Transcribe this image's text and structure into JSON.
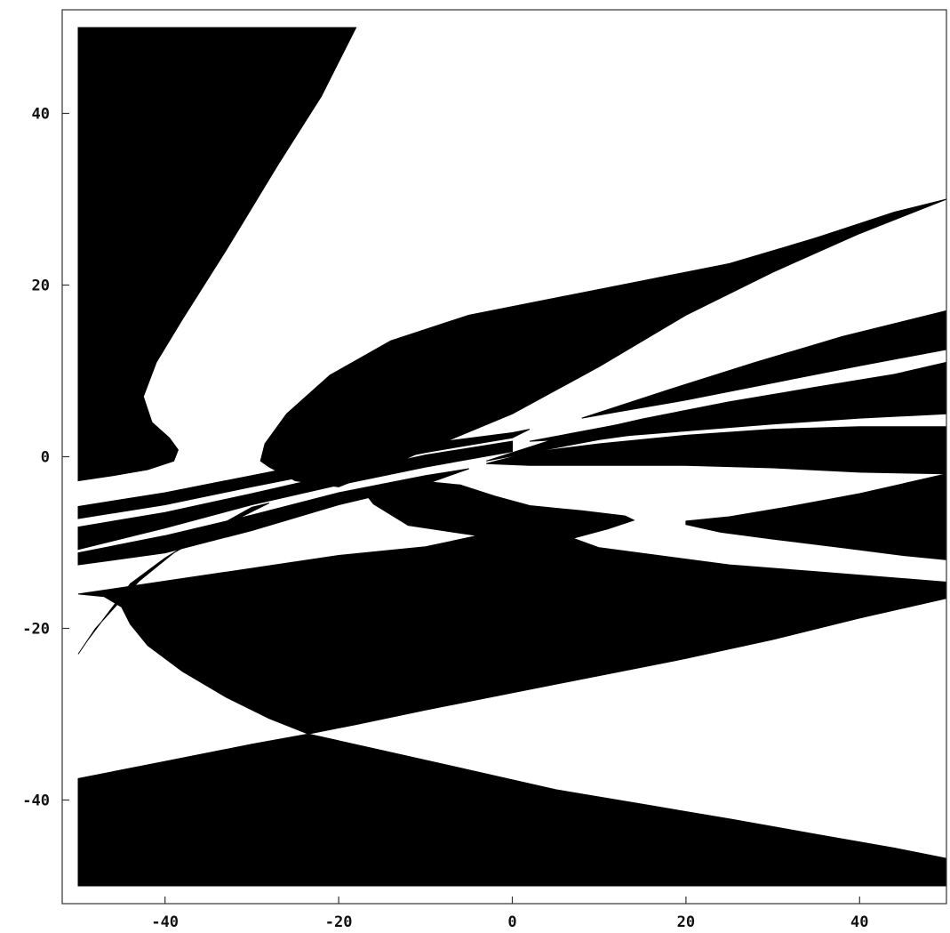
{
  "chart_data": {
    "type": "area",
    "title": "",
    "xlabel": "",
    "ylabel": "",
    "xlim": [
      -50,
      50
    ],
    "ylim": [
      -50,
      50
    ],
    "grid": false,
    "x_ticks": [
      -40,
      -20,
      0,
      20,
      40
    ],
    "x_tick_labels": [
      "-40",
      "-20",
      "0",
      "20",
      "40"
    ],
    "y_ticks": [
      40,
      20,
      0,
      -20,
      -40
    ],
    "y_tick_labels": [
      "40",
      "20",
      "0",
      "-20",
      "-40"
    ],
    "fill_color": "#000000",
    "background_color": "#ffffff",
    "regions": [
      {
        "name": "upper-left-region",
        "points": [
          [
            -50,
            50
          ],
          [
            -18,
            50
          ],
          [
            -22,
            42
          ],
          [
            -27,
            34
          ],
          [
            -33,
            24
          ],
          [
            -38,
            16
          ],
          [
            -41,
            11
          ],
          [
            -42.5,
            7
          ],
          [
            -41.5,
            4
          ],
          [
            -39.5,
            2.2
          ],
          [
            -38.5,
            0.8
          ],
          [
            -39,
            -0.5
          ],
          [
            -42,
            -1.5
          ],
          [
            -46,
            -2.2
          ],
          [
            -50,
            -2.8
          ]
        ]
      },
      {
        "name": "upper-wing-region",
        "points": [
          [
            50,
            30
          ],
          [
            44,
            28.5
          ],
          [
            35,
            25.5
          ],
          [
            25,
            22.5
          ],
          [
            15,
            20.5
          ],
          [
            5,
            18.5
          ],
          [
            -5,
            16.5
          ],
          [
            -14,
            13.5
          ],
          [
            -21,
            9.5
          ],
          [
            -26,
            5
          ],
          [
            -28.5,
            1.5
          ],
          [
            -29,
            -0.5
          ],
          [
            -28,
            -1.2
          ],
          [
            -25,
            -2.8
          ],
          [
            -20,
            -3.5
          ],
          [
            -15,
            -1.5
          ],
          [
            -10,
            0.8
          ],
          [
            0,
            5
          ],
          [
            10,
            10.5
          ],
          [
            20,
            16.5
          ],
          [
            30,
            21.5
          ],
          [
            40,
            26
          ],
          [
            50,
            30
          ]
        ]
      },
      {
        "name": "upper-streak-1",
        "points": [
          [
            -50,
            -5.8
          ],
          [
            -40,
            -4.2
          ],
          [
            -30,
            -2.2
          ],
          [
            -20,
            -0.2
          ],
          [
            -10,
            1.5
          ],
          [
            0,
            2.8
          ],
          [
            2,
            3.2
          ],
          [
            0,
            2.2
          ],
          [
            -10,
            0.5
          ],
          [
            -20,
            -1.5
          ],
          [
            -30,
            -3.5
          ],
          [
            -40,
            -5.6
          ],
          [
            -50,
            -7.2
          ]
        ]
      },
      {
        "name": "upper-streak-2",
        "points": [
          [
            -50,
            -8.2
          ],
          [
            -40,
            -6.5
          ],
          [
            -30,
            -4.3
          ],
          [
            -20,
            -2
          ],
          [
            -10,
            0.2
          ],
          [
            0,
            1.8
          ],
          [
            0,
            0.6
          ],
          [
            -10,
            -1.2
          ],
          [
            -20,
            -3.3
          ],
          [
            -30,
            -5.6
          ],
          [
            -40,
            -8.3
          ],
          [
            -50,
            -10.8
          ]
        ]
      },
      {
        "name": "upper-streak-3",
        "points": [
          [
            -50,
            -11.2
          ],
          [
            -40,
            -9.2
          ],
          [
            -30,
            -6.8
          ],
          [
            -20,
            -4.2
          ],
          [
            -10,
            -2.2
          ],
          [
            -5,
            -1.4
          ],
          [
            -10,
            -3.2
          ],
          [
            -20,
            -5.6
          ],
          [
            -30,
            -8.6
          ],
          [
            -40,
            -11.2
          ],
          [
            -50,
            -12.6
          ]
        ]
      },
      {
        "name": "lower-left-arc",
        "points": [
          [
            -50,
            -23
          ],
          [
            -48,
            -20
          ],
          [
            -45.5,
            -17.2
          ],
          [
            -43,
            -14.5
          ],
          [
            -39,
            -11.2
          ],
          [
            -34,
            -8.4
          ],
          [
            -28,
            -5.4
          ],
          [
            -30,
            -5.9
          ],
          [
            -35,
            -8.7
          ],
          [
            -40,
            -11.8
          ],
          [
            -44,
            -14.8
          ],
          [
            -47,
            -18.8
          ],
          [
            -49,
            -21.5
          ],
          [
            -50,
            -23
          ]
        ]
      },
      {
        "name": "middle-region",
        "points": [
          [
            -50,
            -16
          ],
          [
            -40,
            -14.5
          ],
          [
            -30,
            -13
          ],
          [
            -20,
            -11.5
          ],
          [
            -10,
            -10.5
          ],
          [
            -4,
            -9.2
          ],
          [
            -12,
            -8
          ],
          [
            -16,
            -5.5
          ],
          [
            -17,
            -4.2
          ],
          [
            -15,
            -3.2
          ],
          [
            -11,
            -2.8
          ],
          [
            -6,
            -3.3
          ],
          [
            -2,
            -4.6
          ],
          [
            2,
            -5.7
          ],
          [
            8,
            -6.3
          ],
          [
            13,
            -6.9
          ],
          [
            14,
            -7.4
          ],
          [
            11,
            -8.4
          ],
          [
            7,
            -9.5
          ],
          [
            10,
            -10.6
          ],
          [
            16,
            -11.4
          ],
          [
            25,
            -12.6
          ],
          [
            35,
            -13.4
          ],
          [
            50,
            -14.6
          ],
          [
            50,
            -16.5
          ],
          [
            40,
            -18.8
          ],
          [
            30,
            -21.3
          ],
          [
            20,
            -23.5
          ],
          [
            10,
            -25.5
          ],
          [
            0,
            -27.5
          ],
          [
            -10,
            -29.5
          ],
          [
            -18,
            -31.2
          ],
          [
            -23.5,
            -32.3
          ],
          [
            -28,
            -30.5
          ],
          [
            -33,
            -28
          ],
          [
            -38,
            -25
          ],
          [
            -42,
            -22
          ],
          [
            -44,
            -19.5
          ],
          [
            -45,
            -17.5
          ],
          [
            -47,
            -16.3
          ],
          [
            -50,
            -16
          ]
        ]
      },
      {
        "name": "lower-region",
        "points": [
          [
            -50,
            -37.5
          ],
          [
            -40,
            -35.5
          ],
          [
            -30,
            -33.5
          ],
          [
            -23.5,
            -32.3
          ],
          [
            -16,
            -34
          ],
          [
            -5,
            -36.5
          ],
          [
            5,
            -38.8
          ],
          [
            15,
            -40.5
          ],
          [
            25,
            -42.2
          ],
          [
            35,
            -44
          ],
          [
            44,
            -45.6
          ],
          [
            50,
            -46.8
          ],
          [
            50,
            -50
          ],
          [
            -50,
            -50
          ]
        ]
      },
      {
        "name": "right-band-1",
        "points": [
          [
            8,
            4.5
          ],
          [
            18,
            7.8
          ],
          [
            28,
            11
          ],
          [
            38,
            14
          ],
          [
            50,
            17
          ],
          [
            50,
            12.5
          ],
          [
            40,
            10.6
          ],
          [
            30,
            8.6
          ],
          [
            20,
            6.6
          ],
          [
            12,
            5.2
          ],
          [
            8,
            4.5
          ]
        ]
      },
      {
        "name": "right-band-2",
        "points": [
          [
            2,
            1.8
          ],
          [
            12,
            3.7
          ],
          [
            22,
            5.1
          ],
          [
            32,
            6.7
          ],
          [
            40,
            8
          ],
          [
            50,
            8.3
          ],
          [
            50,
            5
          ],
          [
            40,
            4.5
          ],
          [
            30,
            3.8
          ],
          [
            20,
            3
          ],
          [
            10,
            2.2
          ],
          [
            2,
            1.8
          ]
        ]
      },
      {
        "name": "right-band-3",
        "points": [
          [
            -3,
            -0.5
          ],
          [
            10,
            2
          ],
          [
            20,
            3.4
          ],
          [
            32,
            4.7
          ],
          [
            42,
            5.8
          ],
          [
            50,
            6.3
          ],
          [
            50,
            11
          ],
          [
            44,
            9.6
          ],
          [
            35,
            8.1
          ],
          [
            25,
            6.4
          ],
          [
            15,
            4.4
          ],
          [
            5,
            2.1
          ],
          [
            -3,
            -0.5
          ]
        ]
      },
      {
        "name": "right-lobe",
        "points": [
          [
            -3,
            -0.8
          ],
          [
            2,
            0.5
          ],
          [
            10,
            1.5
          ],
          [
            20,
            2.5
          ],
          [
            30,
            3.2
          ],
          [
            40,
            3.5
          ],
          [
            50,
            3.5
          ],
          [
            50,
            -2
          ],
          [
            40,
            -1.8
          ],
          [
            30,
            -1.3
          ],
          [
            20,
            -1
          ],
          [
            10,
            -1
          ],
          [
            2,
            -1
          ],
          [
            -3,
            -0.8
          ]
        ]
      },
      {
        "name": "right-lower-lobe",
        "points": [
          [
            20,
            -7.5
          ],
          [
            25,
            -7
          ],
          [
            32,
            -5.8
          ],
          [
            40,
            -4.3
          ],
          [
            50,
            -2
          ],
          [
            50,
            -12
          ],
          [
            45,
            -11.5
          ],
          [
            38,
            -10.6
          ],
          [
            30,
            -9.6
          ],
          [
            24,
            -8.8
          ],
          [
            20,
            -7.9
          ],
          [
            20,
            -7.5
          ]
        ]
      }
    ]
  }
}
